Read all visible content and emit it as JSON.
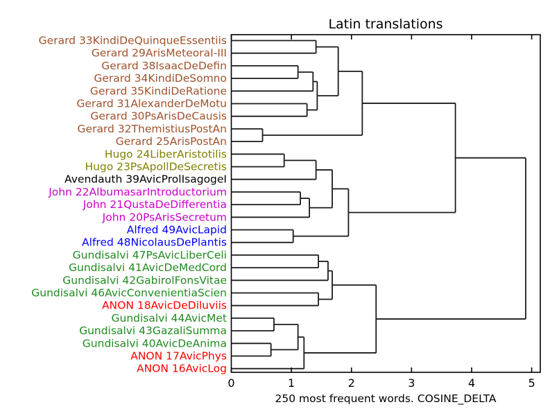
{
  "chart_data": {
    "type": "dendrogram",
    "title": "Latin translations",
    "xlabel": "250 most frequent words. COSINE_DELTA",
    "orientation": "left-leaves",
    "xlim": [
      0,
      5.14
    ],
    "xticks": [
      "0",
      "1",
      "2",
      "3",
      "4",
      "5"
    ],
    "xtick_values": [
      0,
      1,
      2,
      3,
      4,
      5
    ],
    "grid": "off",
    "legend": "none",
    "link_color": "#1a1a1a",
    "label_colors": {
      "gerard": "#A0522D",
      "hugo": "#808000",
      "avendauth": "#000000",
      "john": "#CC00CC",
      "alfred": "#0000FF",
      "gundisalvi": "#228B22",
      "anon": "#FF0000"
    },
    "leaves": [
      {
        "label": "Gerard 33KindiDeQuinqueEssentiis",
        "group": "gerard"
      },
      {
        "label": "Gerard 29ArisMeteoraI-III",
        "group": "gerard"
      },
      {
        "label": "Gerard 38IsaacDeDefin",
        "group": "gerard"
      },
      {
        "label": "Gerard 34KindiDeSomno",
        "group": "gerard"
      },
      {
        "label": "Gerard 35KindiDeRatione",
        "group": "gerard"
      },
      {
        "label": "Gerard 31AlexanderDeMotu",
        "group": "gerard"
      },
      {
        "label": "Gerard 30PsArisDeCausis",
        "group": "gerard"
      },
      {
        "label": "Gerard 32ThemistiusPostAn",
        "group": "gerard"
      },
      {
        "label": "Gerard 25ArisPostAn",
        "group": "gerard"
      },
      {
        "label": "Hugo 24LiberAristotilis",
        "group": "hugo"
      },
      {
        "label": "Hugo 23PsApollDeSecretis",
        "group": "hugo"
      },
      {
        "label": "Avendauth 39AvicProlIsagogeI",
        "group": "avendauth"
      },
      {
        "label": "John 22AlbumasarIntroductorium",
        "group": "john"
      },
      {
        "label": "John 21QustaDeDifferentia",
        "group": "john"
      },
      {
        "label": "John 20PsArisSecretum",
        "group": "john"
      },
      {
        "label": "Alfred 49AvicLapid",
        "group": "alfred"
      },
      {
        "label": "Alfred 48NicolausDePlantis",
        "group": "alfred"
      },
      {
        "label": "Gundisalvi 47PsAvicLiberCeli",
        "group": "gundisalvi"
      },
      {
        "label": "Gundisalvi 41AvicDeMedCord",
        "group": "gundisalvi"
      },
      {
        "label": "Gundisalvi 42GabirolFonsVitae",
        "group": "gundisalvi"
      },
      {
        "label": "Gundisalvi 46AvicConvenientiaScien",
        "group": "gundisalvi"
      },
      {
        "label": "ANON 18AvicDeDiluviis",
        "group": "anon"
      },
      {
        "label": "Gundisalvi 44AvicMet",
        "group": "gundisalvi"
      },
      {
        "label": "Gundisalvi 43GazaliSumma",
        "group": "gundisalvi"
      },
      {
        "label": "Gundisalvi 40AvicDeAnima",
        "group": "gundisalvi"
      },
      {
        "label": "ANON 17AvicPhys",
        "group": "anon"
      },
      {
        "label": "ANON 16AvicLog",
        "group": "anon"
      }
    ],
    "merges": [
      [
        0,
        1,
        1.41
      ],
      [
        2,
        3,
        1.11
      ],
      [
        28,
        4,
        1.36
      ],
      [
        5,
        6,
        1.26
      ],
      [
        29,
        30,
        1.43
      ],
      [
        27,
        31,
        1.78
      ],
      [
        7,
        8,
        0.52
      ],
      [
        32,
        33,
        2.18
      ],
      [
        9,
        10,
        0.88
      ],
      [
        35,
        11,
        1.41
      ],
      [
        12,
        13,
        1.15
      ],
      [
        37,
        14,
        1.3
      ],
      [
        36,
        38,
        1.68
      ],
      [
        15,
        16,
        1.03
      ],
      [
        39,
        40,
        1.95
      ],
      [
        34,
        41,
        3.73
      ],
      [
        17,
        18,
        1.45
      ],
      [
        43,
        19,
        1.61
      ],
      [
        20,
        21,
        1.45
      ],
      [
        44,
        45,
        1.68
      ],
      [
        22,
        23,
        0.71
      ],
      [
        24,
        25,
        0.66
      ],
      [
        47,
        48,
        1.11
      ],
      [
        49,
        26,
        1.21
      ],
      [
        46,
        50,
        2.41
      ],
      [
        42,
        51,
        4.9
      ]
    ]
  }
}
